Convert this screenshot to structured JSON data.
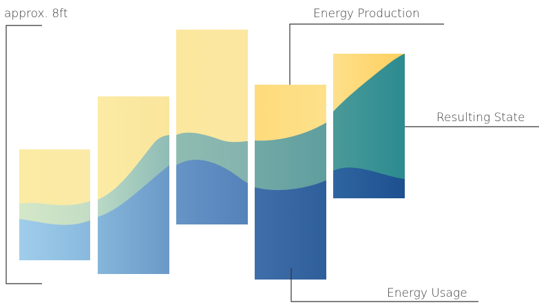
{
  "labels": {
    "height_note": "approx. 8ft",
    "energy_production": "Energy Production",
    "resulting_state": "Resulting State",
    "energy_usage": "Energy Usage"
  },
  "colors": {
    "production_yellow_light": "#fbeba6",
    "production_yellow": "#fedc7a",
    "state_teal_light": "#cfe3c4",
    "state_teal": "#8fbcb2",
    "state_teal_dark": "#2f8f92",
    "usage_blue_light": "#9ccbe8",
    "usage_blue": "#6f9fcb",
    "usage_blue_dark": "#1f5795",
    "line": "#333333",
    "text": "#3a3a3a"
  }
}
